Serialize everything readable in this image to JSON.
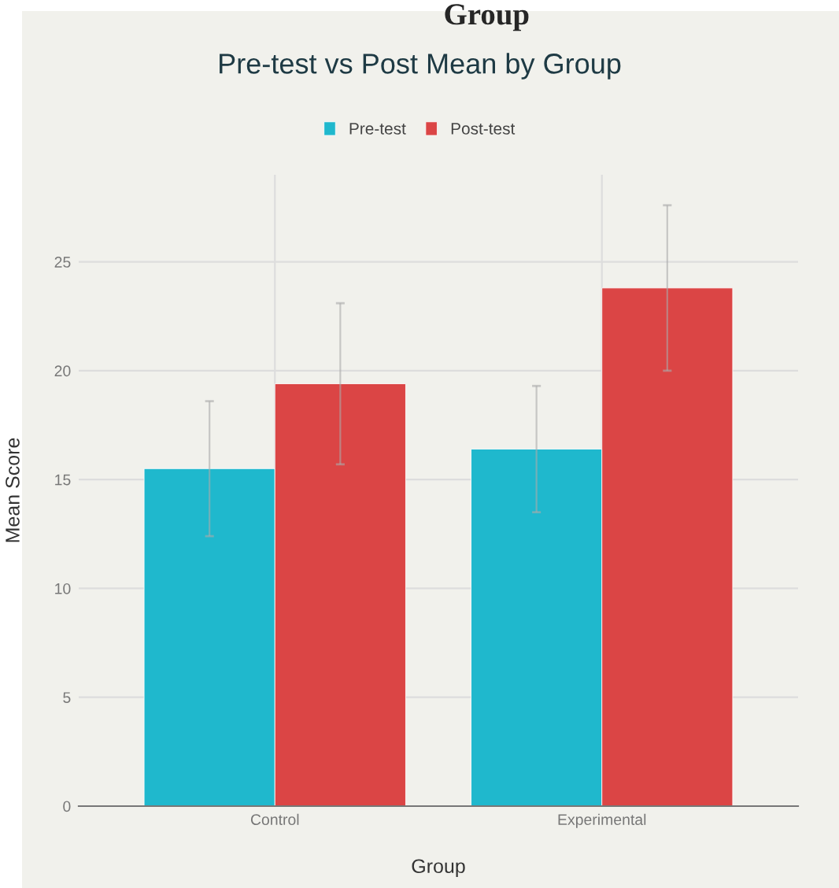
{
  "chart_data": {
    "type": "bar",
    "title": "Pre-test vs Post Mean by Group",
    "xlabel": "Group",
    "ylabel": "Mean Score",
    "annotations": [
      "Group"
    ],
    "categories": [
      "Control",
      "Experimental"
    ],
    "series": [
      {
        "name": "Pre-test",
        "color": "#1fb8cd",
        "values": [
          15.5,
          16.4
        ],
        "errors": [
          3.1,
          2.9
        ]
      },
      {
        "name": "Post-test",
        "color": "#db4545",
        "values": [
          19.4,
          23.8
        ],
        "errors": [
          3.7,
          3.8
        ]
      }
    ],
    "ylim": [
      0,
      29
    ],
    "yticks": [
      0,
      5,
      10,
      15,
      20,
      25
    ],
    "grid": true,
    "legend": "top"
  }
}
